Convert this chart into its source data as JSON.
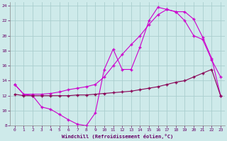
{
  "xlabel": "Windchill (Refroidissement éolien,°C)",
  "background_color": "#ceeaea",
  "grid_color": "#aacece",
  "line_color_bright": "#cc00cc",
  "line_color_dark": "#880055",
  "xlim": [
    -0.5,
    23.5
  ],
  "ylim": [
    8,
    24.5
  ],
  "yticks": [
    8,
    10,
    12,
    14,
    16,
    18,
    20,
    22,
    24
  ],
  "xticks": [
    0,
    1,
    2,
    3,
    4,
    5,
    6,
    7,
    8,
    9,
    10,
    11,
    12,
    13,
    14,
    15,
    16,
    17,
    18,
    19,
    20,
    21,
    22,
    23
  ],
  "series1_x": [
    0,
    1,
    2,
    3,
    4,
    5,
    6,
    7,
    8,
    9,
    10,
    11,
    12,
    13,
    14,
    15,
    16,
    17,
    18,
    19,
    20,
    21,
    22,
    23
  ],
  "series1_y": [
    13.5,
    12.2,
    12.0,
    10.5,
    10.2,
    9.5,
    8.8,
    8.2,
    8.0,
    9.7,
    15.5,
    18.2,
    15.5,
    15.5,
    18.5,
    22.0,
    23.8,
    23.5,
    23.2,
    23.2,
    22.2,
    19.8,
    17.0,
    12.0
  ],
  "series2_x": [
    0,
    1,
    2,
    3,
    4,
    5,
    6,
    7,
    8,
    9,
    10,
    11,
    12,
    13,
    14,
    15,
    16,
    17,
    18,
    19,
    20,
    21,
    22,
    23
  ],
  "series2_y": [
    13.5,
    12.2,
    12.2,
    12.2,
    12.3,
    12.5,
    12.8,
    13.0,
    13.2,
    13.5,
    14.5,
    16.0,
    17.5,
    18.8,
    20.0,
    21.5,
    22.8,
    23.5,
    23.2,
    22.0,
    20.0,
    19.5,
    16.8,
    14.5
  ],
  "series3_x": [
    0,
    1,
    2,
    3,
    4,
    5,
    6,
    7,
    8,
    9,
    10,
    11,
    12,
    13,
    14,
    15,
    16,
    17,
    18,
    19,
    20,
    21,
    22,
    23
  ],
  "series3_y": [
    12.2,
    12.0,
    12.0,
    12.0,
    12.0,
    12.0,
    12.0,
    12.1,
    12.1,
    12.2,
    12.3,
    12.4,
    12.5,
    12.6,
    12.8,
    13.0,
    13.2,
    13.5,
    13.8,
    14.0,
    14.5,
    15.0,
    15.5,
    12.0
  ]
}
